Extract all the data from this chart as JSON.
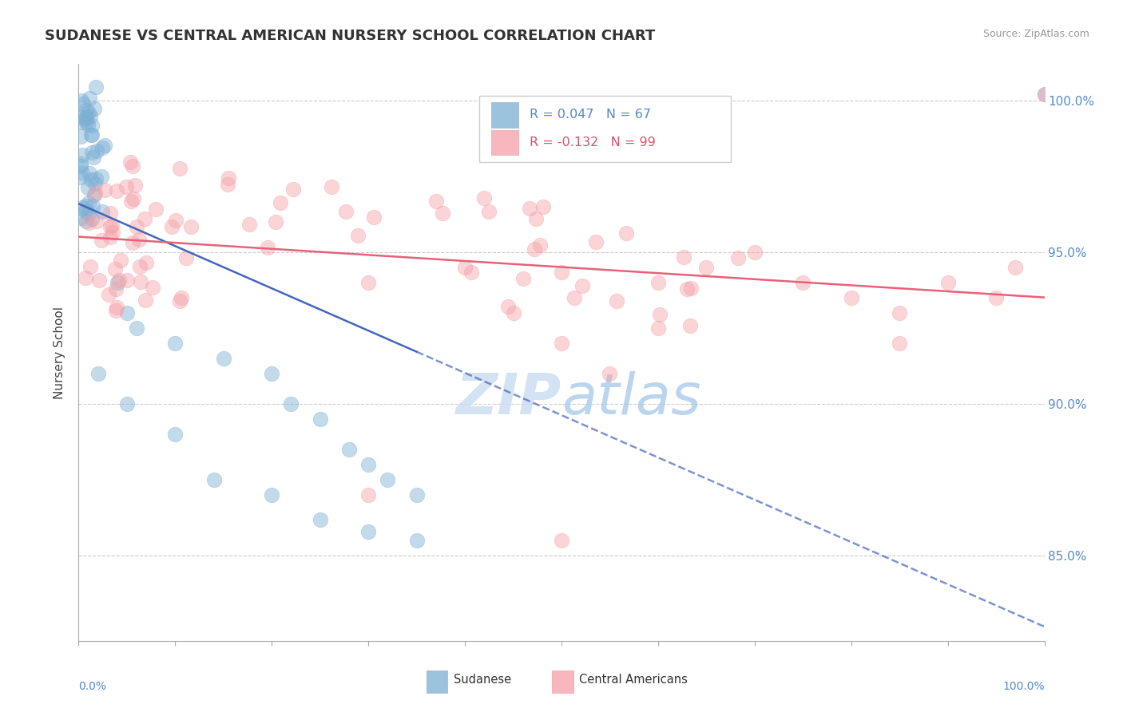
{
  "title": "SUDANESE VS CENTRAL AMERICAN NURSERY SCHOOL CORRELATION CHART",
  "source": "Source: ZipAtlas.com",
  "ylabel": "Nursery School",
  "R_sudanese": 0.047,
  "N_sudanese": 67,
  "R_central": -0.132,
  "N_central": 99,
  "xlim": [
    0.0,
    1.0
  ],
  "ylim": [
    0.822,
    1.012
  ],
  "yticks": [
    0.85,
    0.9,
    0.95,
    1.0
  ],
  "ytick_labels": [
    "85.0%",
    "90.0%",
    "95.0%",
    "100.0%"
  ],
  "color_sudanese": "#7BAFD4",
  "color_central": "#F4A0A8",
  "color_trend_sudanese": "#4466BB",
  "color_trend_central": "#E8607A",
  "watermark_color": "#C8DCF0",
  "grid_color": "#CCCCCC",
  "right_tick_color": "#5588CC",
  "title_color": "#333333",
  "source_color": "#999999"
}
